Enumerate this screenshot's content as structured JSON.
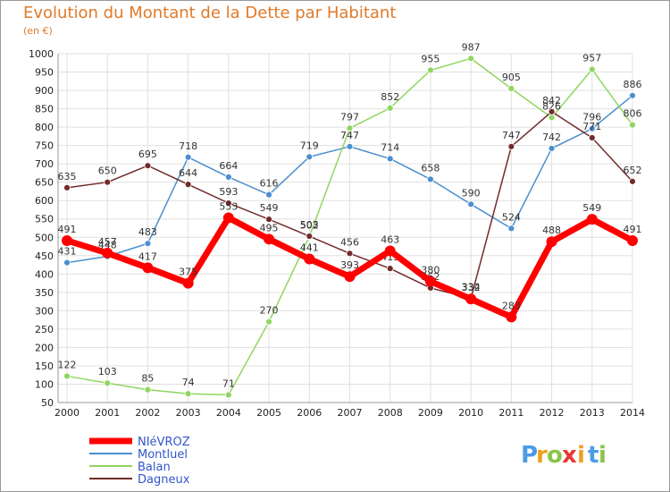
{
  "chart_data": {
    "type": "line",
    "title": "Evolution du Montant de la Dette par Habitant",
    "subtitle": "(en €)",
    "x": [
      "2000",
      "2001",
      "2002",
      "2003",
      "2004",
      "2005",
      "2006",
      "2007",
      "2008",
      "2009",
      "2010",
      "2011",
      "2012",
      "2013",
      "2014"
    ],
    "ylim": [
      50,
      1000
    ],
    "yticks": [
      50,
      100,
      150,
      200,
      250,
      300,
      350,
      400,
      450,
      500,
      550,
      600,
      650,
      700,
      750,
      800,
      850,
      900,
      950,
      1000
    ],
    "grid": true,
    "legend_position": "bottom-left",
    "series": [
      {
        "name": "NIéVROZ",
        "color": "#ff0000",
        "values": [
          491,
          457,
          417,
          375,
          553,
          495,
          441,
          393,
          463,
          380,
          332,
          283,
          488,
          549,
          491
        ]
      },
      {
        "name": "Montluel",
        "color": "#4b8fcf",
        "values": [
          431,
          448,
          483,
          718,
          664,
          616,
          719,
          747,
          714,
          658,
          590,
          524,
          742,
          796,
          886
        ]
      },
      {
        "name": "Balan",
        "color": "#8fd660",
        "values": [
          122,
          103,
          85,
          74,
          71,
          270,
          502,
          797,
          852,
          955,
          987,
          905,
          826,
          957,
          806
        ]
      },
      {
        "name": "Dagneux",
        "color": "#722a2a",
        "values": [
          635,
          650,
          695,
          644,
          593,
          549,
          503,
          456,
          415,
          362,
          334,
          747,
          842,
          771,
          652
        ]
      }
    ]
  },
  "brand": {
    "letters": [
      "P",
      "r",
      "o",
      "x",
      "i",
      "t",
      "i"
    ],
    "colors": [
      "#4a9be8",
      "#f0a020",
      "#8bc34a",
      "#e53935",
      "#f0a020",
      "#4a9be8",
      "#8bc34a"
    ]
  }
}
